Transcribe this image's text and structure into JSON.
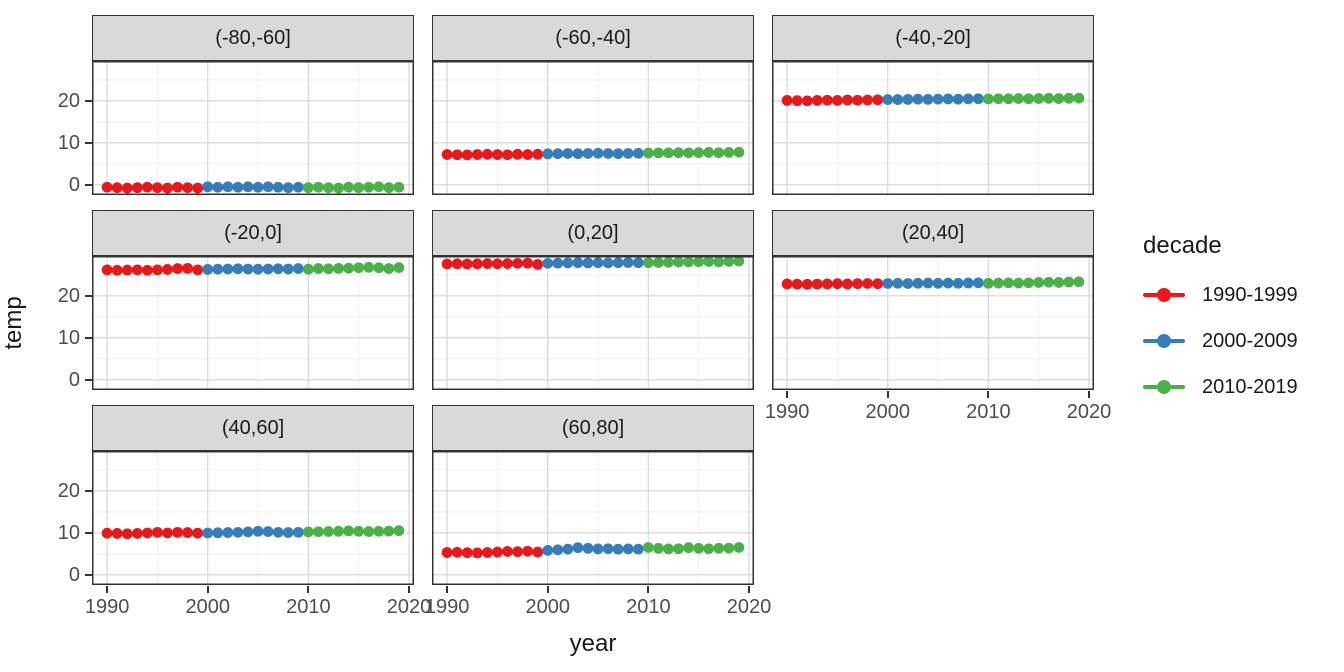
{
  "axis": {
    "x_title": "year",
    "y_title": "temp",
    "x_ticks": [
      1990,
      2000,
      2010,
      2020
    ],
    "x_minor_ticks": [
      1995,
      2005,
      2015
    ],
    "y_ticks": [
      0,
      10,
      20
    ],
    "y_minor_ticks": [
      5,
      15,
      25
    ],
    "x_domain": [
      1988.5,
      2020.5
    ],
    "y_domain": [
      -2.45,
      29.5
    ],
    "tick_label_color": "#4d4d4d"
  },
  "legend": {
    "title": "decade",
    "items": [
      {
        "label": "1990-1999",
        "color": "#E41A1C"
      },
      {
        "label": "2000-2009",
        "color": "#377EB8"
      },
      {
        "label": "2010-2019",
        "color": "#4DAF4A"
      }
    ]
  },
  "style": {
    "strip_fill": "#D9D9D9",
    "panel_border": "#333333",
    "grid_major": "#DCDCDC",
    "grid_minor": "#EFEFEF",
    "background": "#ffffff"
  },
  "chart_data": {
    "type": "scatter",
    "xlabel": "year",
    "ylabel": "temp",
    "legend_title": "decade",
    "series_note": "color by decade: 1990-1999 red, 2000-2009 blue, 2010-2019 green",
    "years": [
      1990,
      1991,
      1992,
      1993,
      1994,
      1995,
      1996,
      1997,
      1998,
      1999,
      2000,
      2001,
      2002,
      2003,
      2004,
      2005,
      2006,
      2007,
      2008,
      2009,
      2010,
      2011,
      2012,
      2013,
      2014,
      2015,
      2016,
      2017,
      2018,
      2019
    ],
    "facets": [
      {
        "label": "(-80,-60]",
        "temps": [
          -0.6,
          -0.7,
          -0.8,
          -0.7,
          -0.6,
          -0.7,
          -0.8,
          -0.6,
          -0.7,
          -0.8,
          -0.5,
          -0.6,
          -0.5,
          -0.6,
          -0.5,
          -0.6,
          -0.5,
          -0.6,
          -0.7,
          -0.6,
          -0.7,
          -0.6,
          -0.7,
          -0.8,
          -0.6,
          -0.7,
          -0.6,
          -0.5,
          -0.7,
          -0.6
        ]
      },
      {
        "label": "(-60,-40]",
        "temps": [
          7.2,
          7.15,
          7.1,
          7.2,
          7.25,
          7.2,
          7.15,
          7.25,
          7.2,
          7.25,
          7.35,
          7.4,
          7.45,
          7.4,
          7.45,
          7.5,
          7.45,
          7.4,
          7.45,
          7.5,
          7.55,
          7.6,
          7.6,
          7.65,
          7.6,
          7.65,
          7.7,
          7.65,
          7.7,
          7.75
        ]
      },
      {
        "label": "(-40,-20]",
        "temps": [
          20.1,
          20.05,
          20.0,
          20.1,
          20.15,
          20.1,
          20.2,
          20.15,
          20.2,
          20.25,
          20.3,
          20.3,
          20.35,
          20.4,
          20.35,
          20.4,
          20.45,
          20.4,
          20.45,
          20.5,
          20.45,
          20.5,
          20.5,
          20.55,
          20.5,
          20.55,
          20.6,
          20.55,
          20.6,
          20.65
        ]
      },
      {
        "label": "(-20,0]",
        "temps": [
          26.2,
          26.1,
          26.15,
          26.2,
          26.1,
          26.2,
          26.3,
          26.5,
          26.55,
          26.2,
          26.3,
          26.35,
          26.4,
          26.45,
          26.4,
          26.35,
          26.4,
          26.45,
          26.4,
          26.5,
          26.35,
          26.5,
          26.45,
          26.55,
          26.6,
          26.7,
          26.8,
          26.7,
          26.5,
          26.75
        ]
      },
      {
        "label": "(0,20]",
        "temps": [
          27.6,
          27.65,
          27.6,
          27.65,
          27.7,
          27.65,
          27.7,
          27.75,
          27.8,
          27.5,
          27.75,
          27.8,
          27.85,
          27.9,
          27.85,
          27.9,
          27.85,
          27.9,
          27.95,
          27.9,
          27.9,
          27.95,
          28.0,
          28.05,
          28.1,
          28.15,
          28.2,
          28.1,
          28.2,
          28.3
        ]
      },
      {
        "label": "(20,40]",
        "temps": [
          22.85,
          22.8,
          22.75,
          22.8,
          22.85,
          22.9,
          22.85,
          22.9,
          22.95,
          22.9,
          22.95,
          23.0,
          22.95,
          23.0,
          23.05,
          23.0,
          23.05,
          23.0,
          23.05,
          23.1,
          23.0,
          23.05,
          23.1,
          23.05,
          23.1,
          23.2,
          23.25,
          23.2,
          23.3,
          23.35
        ]
      },
      {
        "label": "(40,60]",
        "temps": [
          9.9,
          9.85,
          9.75,
          9.85,
          9.95,
          10.1,
          9.95,
          10.1,
          10.05,
          9.9,
          9.95,
          10.0,
          10.05,
          10.1,
          10.2,
          10.35,
          10.3,
          10.1,
          10.05,
          10.1,
          10.2,
          10.25,
          10.3,
          10.35,
          10.45,
          10.35,
          10.3,
          10.35,
          10.4,
          10.5
        ]
      },
      {
        "label": "(60,80]",
        "temps": [
          5.3,
          5.35,
          5.25,
          5.2,
          5.3,
          5.4,
          5.55,
          5.5,
          5.6,
          5.4,
          5.8,
          5.95,
          6.1,
          6.45,
          6.3,
          6.15,
          6.2,
          6.1,
          6.15,
          6.1,
          6.5,
          6.3,
          6.15,
          6.2,
          6.45,
          6.3,
          6.2,
          6.3,
          6.35,
          6.5
        ]
      }
    ]
  }
}
